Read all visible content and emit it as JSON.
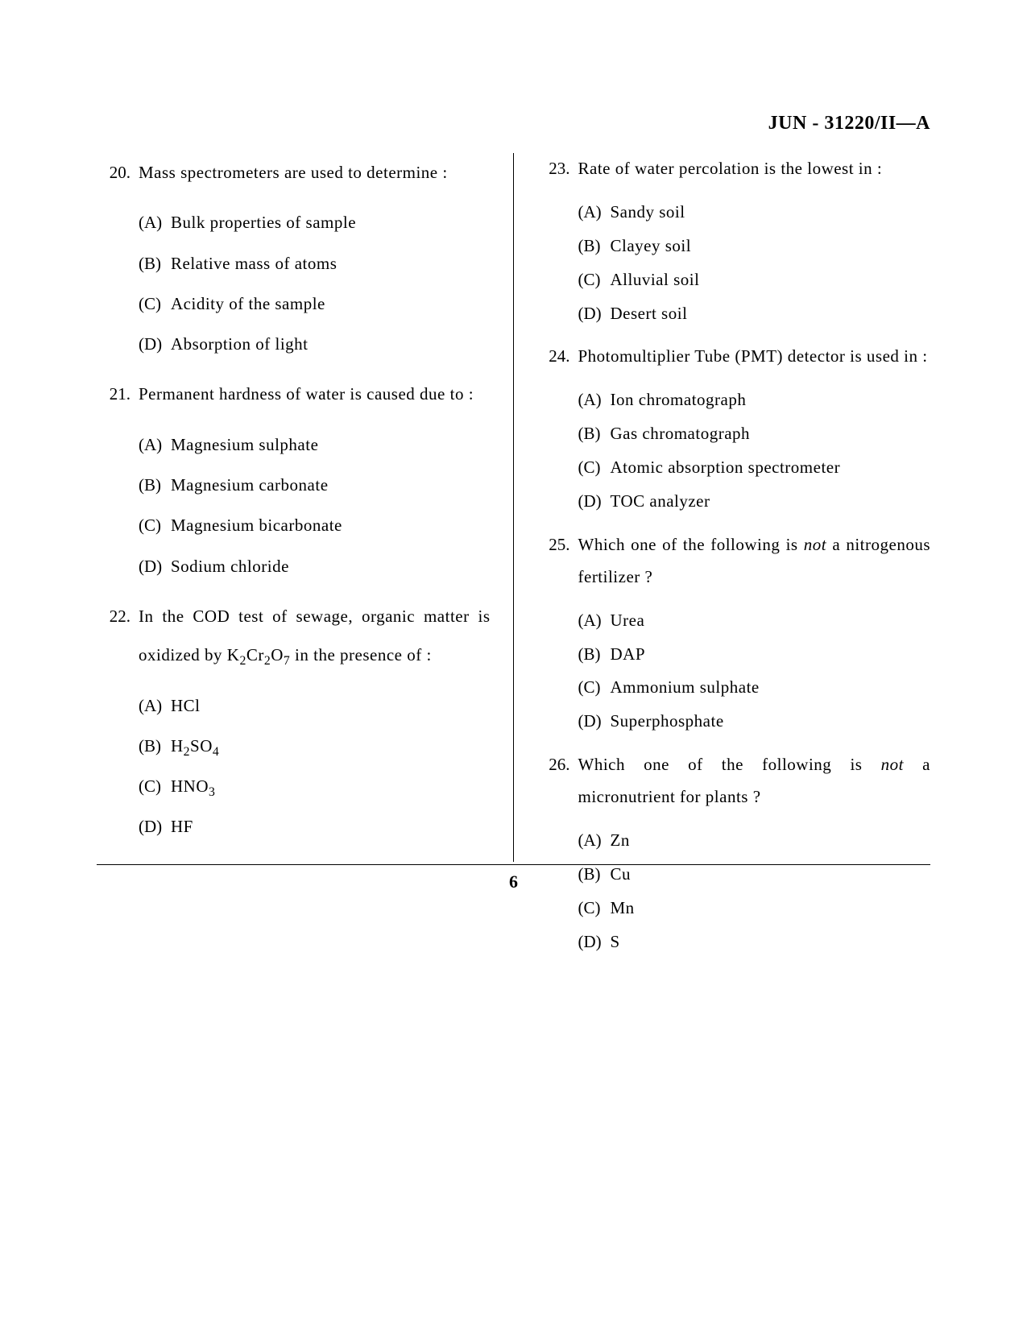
{
  "header": "JUN - 31220/II—A",
  "page_number": "6",
  "left_questions": [
    {
      "num": "20.",
      "text": "Mass spectrometers are used to determine :",
      "options": [
        {
          "label": "(A)",
          "text": "Bulk properties of sample"
        },
        {
          "label": "(B)",
          "text": "Relative mass of atoms"
        },
        {
          "label": "(C)",
          "text": "Acidity of the sample"
        },
        {
          "label": "(D)",
          "text": "Absorption of light"
        }
      ]
    },
    {
      "num": "21.",
      "text": "Permanent hardness of water is caused due to :",
      "options": [
        {
          "label": "(A)",
          "text": "Magnesium sulphate"
        },
        {
          "label": "(B)",
          "text": "Magnesium carbonate"
        },
        {
          "label": "(C)",
          "text": "Magnesium bicarbonate"
        },
        {
          "label": "(D)",
          "text": "Sodium chloride"
        }
      ]
    },
    {
      "num": "22.",
      "text_html": "In the COD test of sewage, organic matter is oxidized by K<sub>2</sub>Cr<sub>2</sub>O<sub>7</sub> in the presence of :",
      "options": [
        {
          "label": "(A)",
          "text": "HCl"
        },
        {
          "label": "(B)",
          "text_html": "H<sub>2</sub>SO<sub>4</sub>"
        },
        {
          "label": "(C)",
          "text_html": "HNO<sub>3</sub>"
        },
        {
          "label": "(D)",
          "text": "HF"
        }
      ]
    }
  ],
  "right_questions": [
    {
      "num": "23.",
      "text": "Rate of water percolation is the lowest in :",
      "options": [
        {
          "label": "(A)",
          "text": "Sandy soil"
        },
        {
          "label": "(B)",
          "text": "Clayey soil"
        },
        {
          "label": "(C)",
          "text": "Alluvial soil"
        },
        {
          "label": "(D)",
          "text": "Desert soil"
        }
      ]
    },
    {
      "num": "24.",
      "text": "Photomultiplier Tube (PMT) detector is used in :",
      "options": [
        {
          "label": "(A)",
          "text": "Ion chromatograph"
        },
        {
          "label": "(B)",
          "text": "Gas chromatograph"
        },
        {
          "label": "(C)",
          "text": "Atomic absorption spectrometer"
        },
        {
          "label": "(D)",
          "text": "TOC analyzer"
        }
      ]
    },
    {
      "num": "25.",
      "text_html": "Which one of the following is <span class=\"italic\">not</span> a nitrogenous fertilizer ?",
      "options": [
        {
          "label": "(A)",
          "text": "Urea"
        },
        {
          "label": "(B)",
          "text": "DAP"
        },
        {
          "label": "(C)",
          "text": "Ammonium sulphate"
        },
        {
          "label": "(D)",
          "text": "Superphosphate"
        }
      ]
    },
    {
      "num": "26.",
      "text_html": "Which one of the following is <span class=\"italic\">not</span> a micronutrient for plants ?",
      "options": [
        {
          "label": "(A)",
          "text": "Zn"
        },
        {
          "label": "(B)",
          "text": "Cu"
        },
        {
          "label": "(C)",
          "text": "Mn"
        },
        {
          "label": "(D)",
          "text": "S"
        }
      ]
    }
  ]
}
